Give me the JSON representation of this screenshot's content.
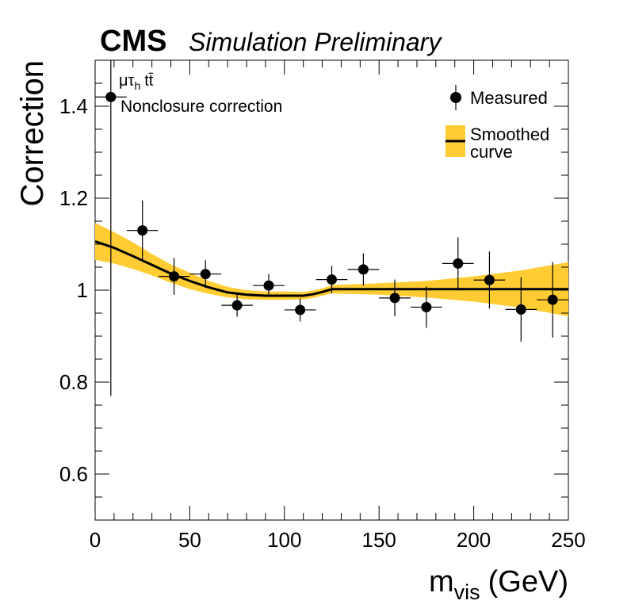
{
  "header": {
    "experiment": "CMS",
    "status": "Simulation Preliminary"
  },
  "annotation": {
    "channel_main": "μτ",
    "channel_sub": "h",
    "channel_suffix": "tt̄",
    "description": "Nonclosure correction"
  },
  "legend": {
    "measured": "Measured",
    "smoothed_line1": "Smoothed",
    "smoothed_line2": "curve"
  },
  "axes": {
    "xlabel_main": "m",
    "xlabel_sub": "vis",
    "xlabel_unit": "(GeV)",
    "ylabel": "Correction"
  },
  "colors": {
    "band": "#ffcc33",
    "line": "#000000",
    "marker": "#000000"
  },
  "chart_data": {
    "type": "scatter",
    "xlim": [
      0,
      250
    ],
    "ylim": [
      0.5,
      1.5
    ],
    "xticks": [
      0,
      50,
      100,
      150,
      200,
      250
    ],
    "xtick_labels": [
      "0",
      "50",
      "100",
      "150",
      "200",
      "250"
    ],
    "yticks": [
      0.6,
      0.8,
      1.0,
      1.2,
      1.4
    ],
    "ytick_labels": [
      "0.6",
      "0.8",
      "1",
      "1.2",
      "1.4"
    ],
    "legend_position": "top-right",
    "grid": false,
    "measured": [
      {
        "x": 8.3,
        "xerr": 8.3,
        "y": 1.42,
        "yerr": 0.65
      },
      {
        "x": 25,
        "xerr": 8.3,
        "y": 1.13,
        "yerr": 0.065
      },
      {
        "x": 41.7,
        "xerr": 8.3,
        "y": 1.03,
        "yerr": 0.04
      },
      {
        "x": 58.3,
        "xerr": 8.3,
        "y": 1.035,
        "yerr": 0.03
      },
      {
        "x": 75,
        "xerr": 8.3,
        "y": 0.967,
        "yerr": 0.025
      },
      {
        "x": 91.7,
        "xerr": 8.3,
        "y": 1.01,
        "yerr": 0.025
      },
      {
        "x": 108.3,
        "xerr": 8.3,
        "y": 0.957,
        "yerr": 0.025
      },
      {
        "x": 125,
        "xerr": 8.3,
        "y": 1.023,
        "yerr": 0.03
      },
      {
        "x": 141.7,
        "xerr": 8.3,
        "y": 1.045,
        "yerr": 0.035
      },
      {
        "x": 158.3,
        "xerr": 8.3,
        "y": 0.983,
        "yerr": 0.04
      },
      {
        "x": 175,
        "xerr": 8.3,
        "y": 0.963,
        "yerr": 0.045
      },
      {
        "x": 191.7,
        "xerr": 8.3,
        "y": 1.058,
        "yerr": 0.057
      },
      {
        "x": 208.3,
        "xerr": 8.3,
        "y": 1.022,
        "yerr": 0.062
      },
      {
        "x": 225,
        "xerr": 8.3,
        "y": 0.958,
        "yerr": 0.07
      },
      {
        "x": 241.7,
        "xerr": 8.3,
        "y": 0.979,
        "yerr": 0.082
      }
    ],
    "smoothed": {
      "x": [
        0,
        10,
        20,
        30,
        40,
        50,
        60,
        70,
        80,
        90,
        100,
        110,
        115,
        120,
        125,
        150,
        175,
        200,
        225,
        250
      ],
      "y": [
        1.106,
        1.092,
        1.074,
        1.055,
        1.036,
        1.02,
        1.006,
        0.995,
        0.99,
        0.988,
        0.988,
        0.988,
        0.991,
        0.996,
        1.002,
        1.002,
        1.002,
        1.002,
        1.002,
        1.002
      ],
      "lower": [
        1.066,
        1.058,
        1.046,
        1.032,
        1.016,
        1.002,
        0.992,
        0.984,
        0.98,
        0.979,
        0.979,
        0.98,
        0.983,
        0.988,
        0.993,
        0.99,
        0.984,
        0.975,
        0.962,
        0.943
      ],
      "upper": [
        1.146,
        1.126,
        1.104,
        1.079,
        1.056,
        1.038,
        1.02,
        1.007,
        1.0,
        0.997,
        0.997,
        0.996,
        0.999,
        1.004,
        1.011,
        1.015,
        1.02,
        1.03,
        1.043,
        1.061
      ]
    }
  }
}
